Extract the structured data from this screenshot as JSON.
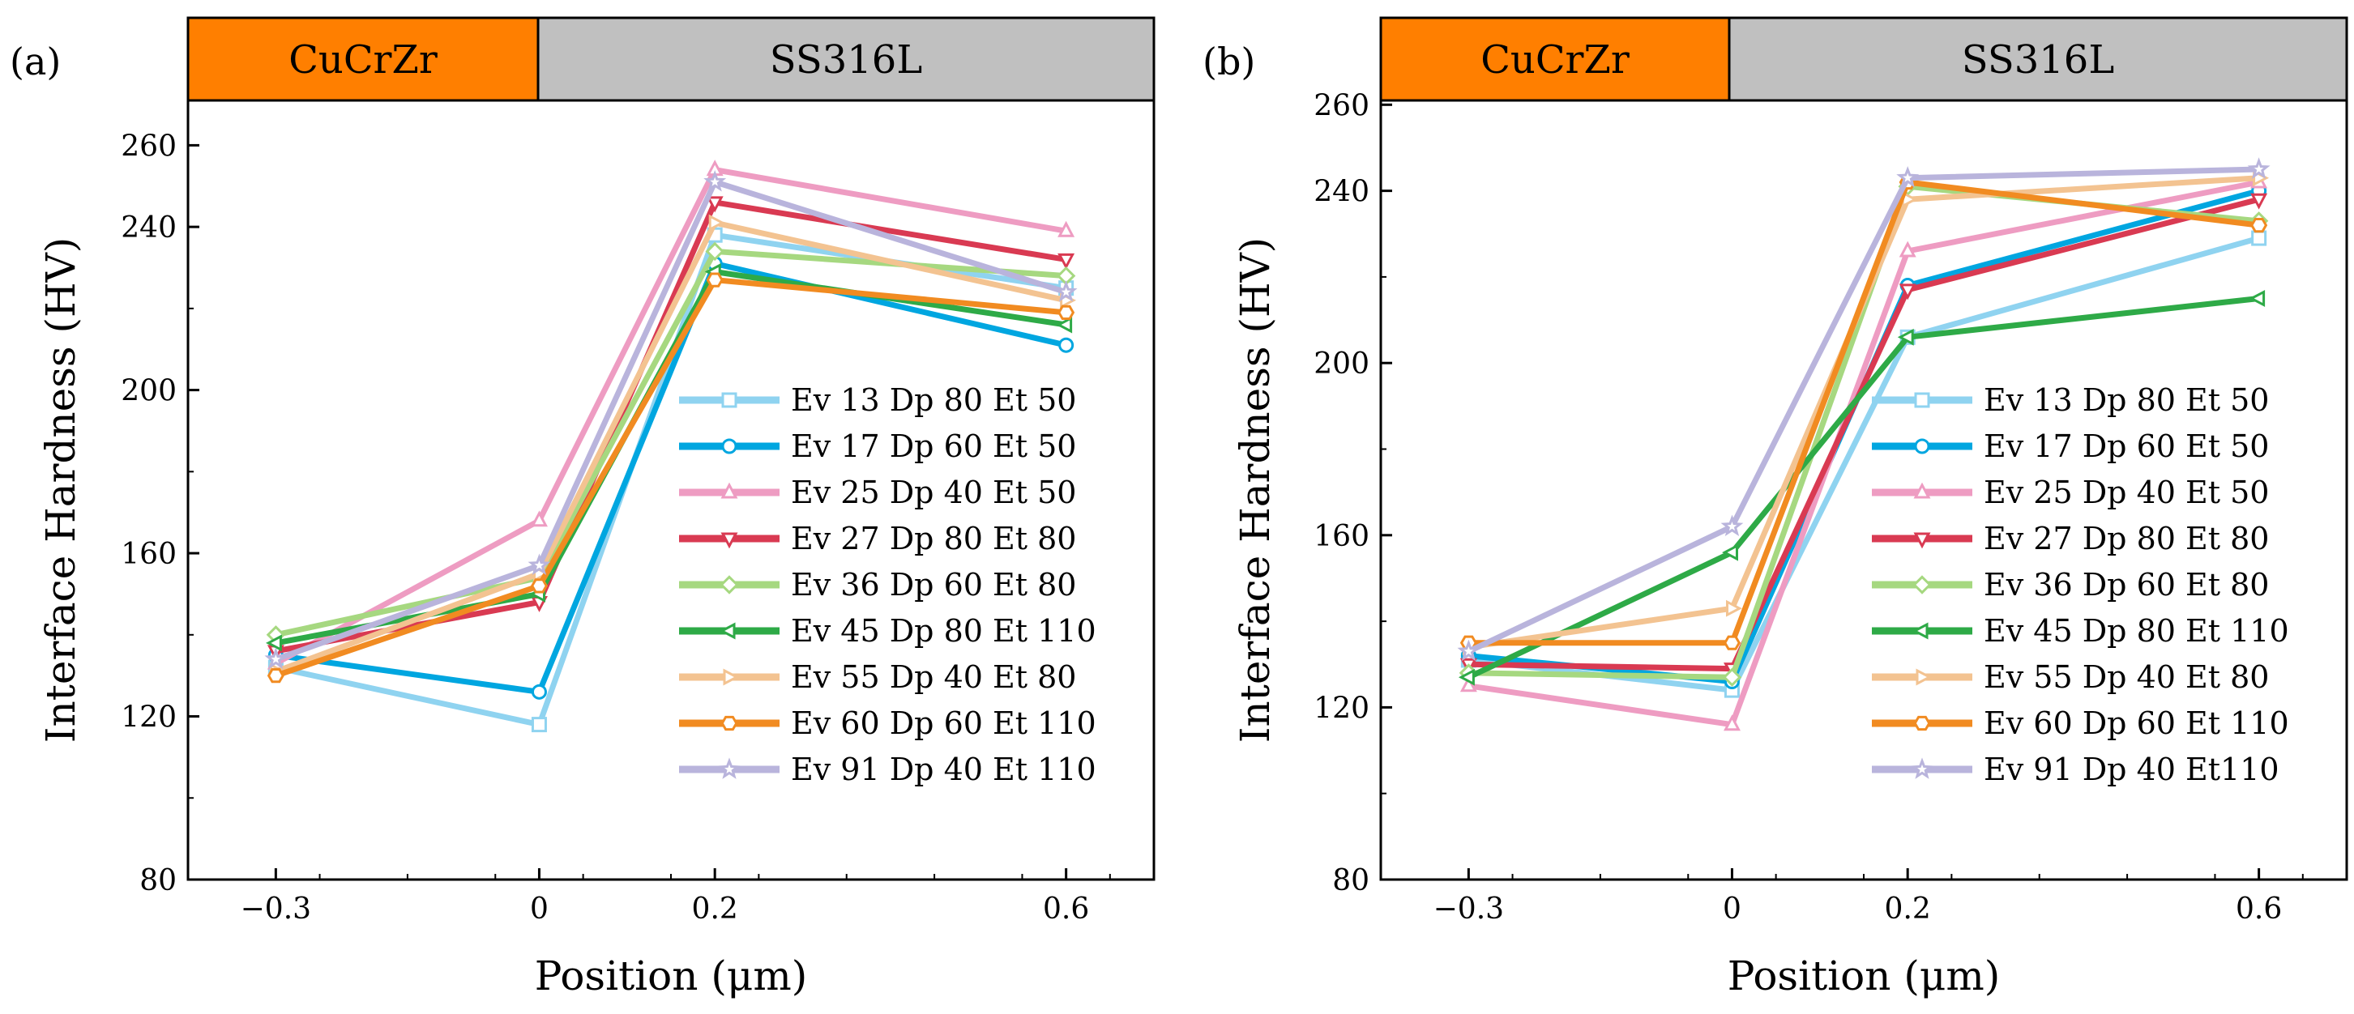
{
  "chart_data": [
    {
      "type": "line",
      "panel_label": "(a)",
      "top_band": [
        {
          "label": "CuCrZr",
          "color": "#ff7f00"
        },
        {
          "label": "SS316L",
          "color": "#c0c0c0"
        }
      ],
      "xlabel": "Position (μm)",
      "ylabel": "Interface Hardness (HV)",
      "x": [
        -0.3,
        0,
        0.2,
        0.6
      ],
      "xticks": [
        -0.3,
        0,
        0.2,
        0.6
      ],
      "xtick_labels": [
        "−0.3",
        "0",
        "0.2",
        "0.6"
      ],
      "xlim": [
        -0.4,
        0.7
      ],
      "ylim": [
        80,
        271
      ],
      "yticks": [
        80,
        120,
        160,
        200,
        240,
        260
      ],
      "legend_position": "bottom-right",
      "series": [
        {
          "name": "Ev 13 Dp 80 Et 50",
          "color": "#8fd3f0",
          "marker": "square",
          "values": [
            132,
            118,
            238,
            225
          ]
        },
        {
          "name": "Ev 17 Dp 60 Et 50",
          "color": "#00a6e0",
          "marker": "circle",
          "values": [
            135,
            126,
            231,
            211
          ]
        },
        {
          "name": "Ev 25 Dp 40 Et 50",
          "color": "#ee9cc2",
          "marker": "triangle-up",
          "values": [
            133,
            168,
            254,
            239
          ]
        },
        {
          "name": "Ev 27 Dp 80 Et 80",
          "color": "#d93a52",
          "marker": "triangle-down",
          "values": [
            136,
            148,
            246,
            232
          ]
        },
        {
          "name": "Ev 36 Dp 60 Et 80",
          "color": "#a6d880",
          "marker": "diamond",
          "values": [
            140,
            154,
            234,
            228
          ]
        },
        {
          "name": "Ev 45 Dp 80 Et 110",
          "color": "#2eaa47",
          "marker": "triangle-left",
          "values": [
            138,
            150,
            229,
            216
          ]
        },
        {
          "name": "Ev 55 Dp 40 Et 80",
          "color": "#f3c391",
          "marker": "triangle-right",
          "values": [
            131,
            155,
            241,
            222
          ]
        },
        {
          "name": "Ev 60 Dp 60 Et 110",
          "color": "#f18b21",
          "marker": "hexagon",
          "values": [
            130,
            152,
            227,
            219
          ]
        },
        {
          "name": "Ev 91 Dp 40 Et 110",
          "color": "#b9b4dc",
          "marker": "star",
          "values": [
            134,
            157,
            251,
            224
          ]
        }
      ]
    },
    {
      "type": "line",
      "panel_label": "(b)",
      "top_band": [
        {
          "label": "CuCrZr",
          "color": "#ff7f00"
        },
        {
          "label": "SS316L",
          "color": "#c0c0c0"
        }
      ],
      "xlabel": "Position (μm)",
      "ylabel": "Interface Hardness (HV)",
      "x": [
        -0.3,
        0,
        0.2,
        0.6
      ],
      "xticks": [
        -0.3,
        0,
        0.2,
        0.6
      ],
      "xtick_labels": [
        "−0.3",
        "0",
        "0.2",
        "0.6"
      ],
      "xlim": [
        -0.4,
        0.7
      ],
      "ylim": [
        80,
        261
      ],
      "yticks": [
        80,
        120,
        160,
        200,
        240,
        260
      ],
      "legend_position": "bottom-right",
      "series": [
        {
          "name": "Ev 13 Dp 80 Et 50",
          "color": "#8fd3f0",
          "marker": "square",
          "values": [
            131,
            124,
            206,
            229
          ]
        },
        {
          "name": "Ev 17 Dp 60 Et 50",
          "color": "#00a6e0",
          "marker": "circle",
          "values": [
            132,
            126,
            218,
            240
          ]
        },
        {
          "name": "Ev 25 Dp 40 Et 50",
          "color": "#ee9cc2",
          "marker": "triangle-up",
          "values": [
            125,
            116,
            226,
            242
          ]
        },
        {
          "name": "Ev 27 Dp 80 Et 80",
          "color": "#d93a52",
          "marker": "triangle-down",
          "values": [
            130,
            129,
            217,
            238
          ]
        },
        {
          "name": "Ev 36 Dp 60 Et 80",
          "color": "#a6d880",
          "marker": "diamond",
          "values": [
            128,
            127,
            241,
            233
          ]
        },
        {
          "name": "Ev 45 Dp 80 Et 110",
          "color": "#2eaa47",
          "marker": "triangle-left",
          "values": [
            127,
            156,
            206,
            215
          ]
        },
        {
          "name": "Ev 55 Dp 40 Et 80",
          "color": "#f3c391",
          "marker": "triangle-right",
          "values": [
            134,
            143,
            238,
            243
          ]
        },
        {
          "name": "Ev 60 Dp 60 Et 110",
          "color": "#f18b21",
          "marker": "hexagon",
          "values": [
            135,
            135,
            242,
            232
          ]
        },
        {
          "name": "Ev 91 Dp 40 Et110",
          "color": "#b9b4dc",
          "marker": "star",
          "values": [
            133,
            162,
            243,
            245
          ]
        }
      ]
    }
  ]
}
